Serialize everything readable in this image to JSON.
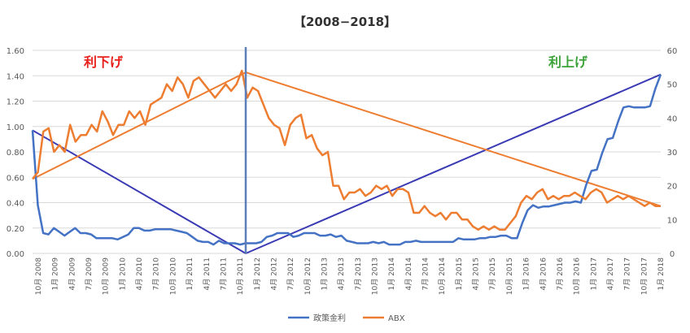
{
  "chart_data": {
    "type": "line",
    "title": "【2008−2018】",
    "left_axis": {
      "ylim": [
        0,
        1.6
      ],
      "ticks": [
        "0.00",
        "0.20",
        "0.40",
        "0.60",
        "0.80",
        "1.00",
        "1.20",
        "1.40",
        "1.60"
      ]
    },
    "right_axis": {
      "ylim": [
        0,
        60
      ],
      "ticks": [
        "0",
        "10",
        "20",
        "30",
        "40",
        "50",
        "60"
      ]
    },
    "x_labels": [
      "10月 2008",
      "1月 2009",
      "4月 2009",
      "7月 2009",
      "10月 2009",
      "1月 2010",
      "4月 2010",
      "7月 2010",
      "10月 2010",
      "1月 2011",
      "4月 2011",
      "7月 2011",
      "10月 2011",
      "1月 2012",
      "4月 2012",
      "7月 2012",
      "10月 2012",
      "1月 2013",
      "4月 2013",
      "7月 2013",
      "10月 2013",
      "1月 2014",
      "4月 2014",
      "7月 2014",
      "10月 2014",
      "1月 2015",
      "4月 2015",
      "7月 2015",
      "10月 2015",
      "1月 2016",
      "4月 2016",
      "7月 2016",
      "10月 2016",
      "1月 2017",
      "4月 2017",
      "7月 2017",
      "10月 2017",
      "1月 2018"
    ],
    "series": [
      {
        "name": "政策金利",
        "axis": "left",
        "color": "#4472C4",
        "values": [
          0.97,
          0.38,
          0.16,
          0.15,
          0.2,
          0.17,
          0.14,
          0.17,
          0.2,
          0.16,
          0.16,
          0.15,
          0.12,
          0.12,
          0.12,
          0.12,
          0.11,
          0.13,
          0.15,
          0.2,
          0.2,
          0.18,
          0.18,
          0.19,
          0.19,
          0.19,
          0.19,
          0.18,
          0.17,
          0.16,
          0.13,
          0.1,
          0.09,
          0.09,
          0.07,
          0.1,
          0.08,
          0.08,
          0.08,
          0.07,
          0.08,
          0.08,
          0.08,
          0.09,
          0.13,
          0.14,
          0.16,
          0.16,
          0.16,
          0.13,
          0.14,
          0.16,
          0.16,
          0.16,
          0.14,
          0.14,
          0.15,
          0.13,
          0.14,
          0.1,
          0.09,
          0.08,
          0.08,
          0.08,
          0.09,
          0.08,
          0.09,
          0.07,
          0.07,
          0.07,
          0.09,
          0.09,
          0.1,
          0.09,
          0.09,
          0.09,
          0.09,
          0.09,
          0.09,
          0.09,
          0.12,
          0.11,
          0.11,
          0.11,
          0.12,
          0.12,
          0.13,
          0.13,
          0.14,
          0.14,
          0.12,
          0.12,
          0.24,
          0.34,
          0.38,
          0.36,
          0.37,
          0.37,
          0.38,
          0.39,
          0.4,
          0.4,
          0.41,
          0.4,
          0.54,
          0.65,
          0.66,
          0.79,
          0.9,
          0.91,
          1.04,
          1.15,
          1.16,
          1.15,
          1.15,
          1.15,
          1.16,
          1.3,
          1.41
        ]
      },
      {
        "name": "ABX",
        "axis": "right",
        "color": "#ED7D31",
        "values": [
          22,
          24,
          36,
          37,
          30,
          32,
          30,
          38,
          33,
          35,
          35,
          38,
          36,
          42,
          39,
          35,
          38,
          38,
          42,
          40,
          42,
          38,
          44,
          45,
          46,
          50,
          48,
          52,
          50,
          46,
          51,
          52,
          50,
          48,
          46,
          48,
          50,
          48,
          50,
          54,
          46,
          49,
          48,
          44,
          40,
          38,
          37,
          32,
          38,
          40,
          41,
          34,
          35,
          31,
          29,
          30,
          20,
          20,
          16,
          18,
          18,
          19,
          17,
          18,
          20,
          19,
          20,
          17,
          19,
          19,
          18,
          12,
          12,
          14,
          12,
          11,
          12,
          10,
          12,
          12,
          10,
          10,
          8,
          7,
          8,
          7,
          8,
          7,
          7,
          9,
          11,
          15,
          17,
          16,
          18,
          19,
          16,
          17,
          16,
          17,
          17,
          18,
          17,
          16,
          18,
          19,
          18,
          15,
          16,
          17,
          16,
          17,
          16,
          15,
          14,
          15,
          14,
          14
        ]
      }
    ],
    "annotations": [
      {
        "text": "利下げ",
        "color": "#E8201C"
      },
      {
        "text": "利上げ",
        "color": "#3CA33A"
      }
    ],
    "legend": {
      "position": "bottom",
      "items": [
        "政策金利",
        "ABX"
      ]
    }
  }
}
